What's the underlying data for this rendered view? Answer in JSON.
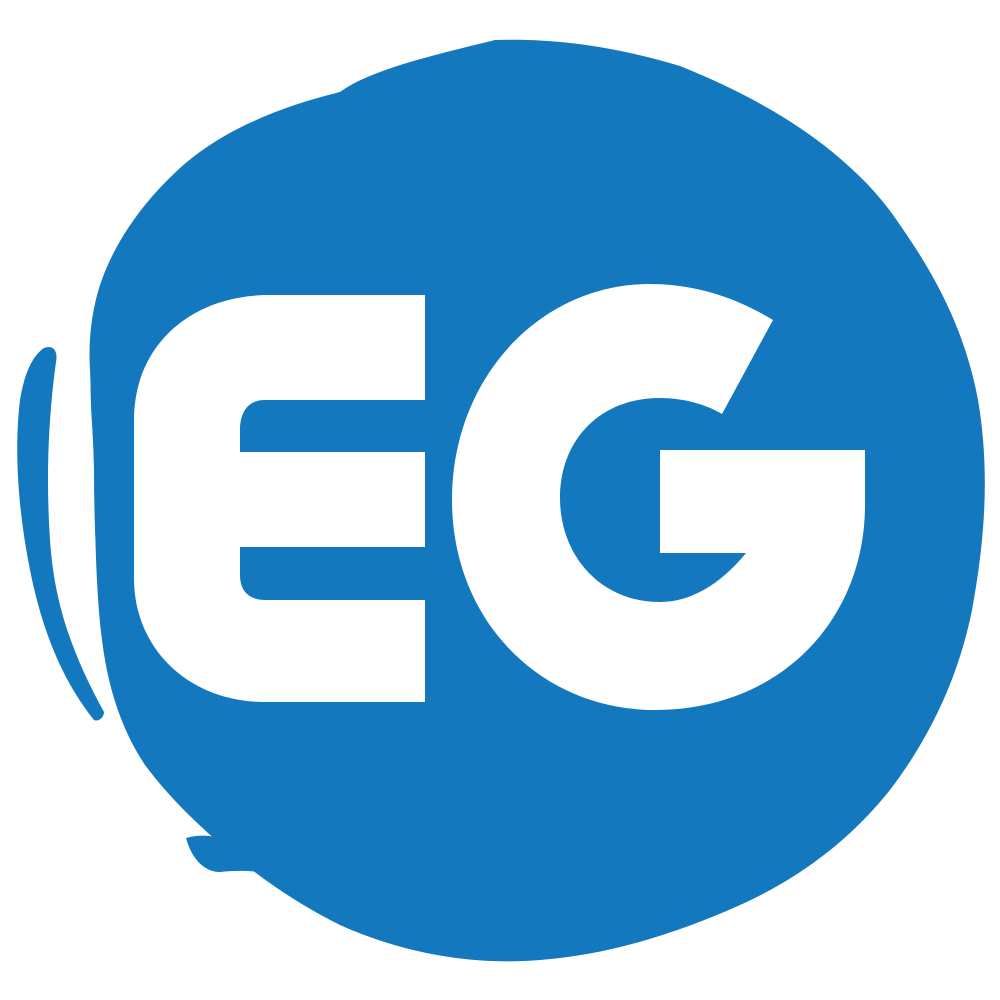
{
  "logo": {
    "lettering": "EG",
    "colors": {
      "brand": "#1478BE",
      "background": "#FFFFFF",
      "letter": "#FFFFFF"
    }
  }
}
